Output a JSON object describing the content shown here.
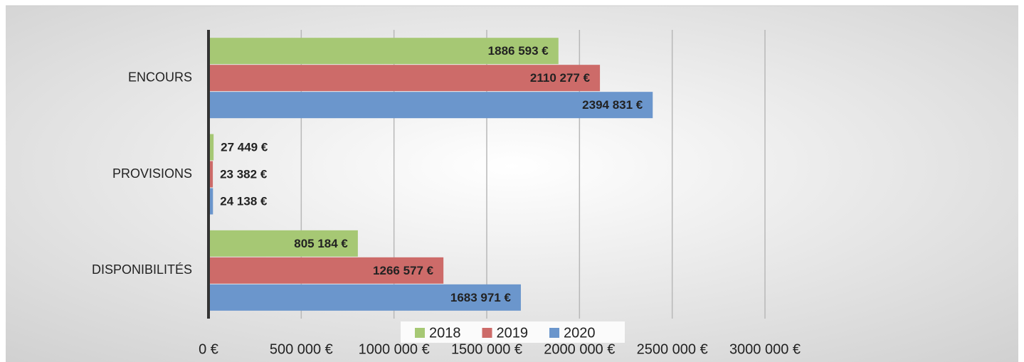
{
  "chart_data": {
    "type": "barh",
    "categories": [
      "ENCOURS",
      "PROVISIONS",
      "DISPONIBILITÉS"
    ],
    "series": [
      {
        "name": "2018",
        "color": "#a6c874",
        "values": [
          1886593,
          27449,
          805184
        ],
        "value_labels": [
          "1886 593 €",
          "27 449 €",
          "805 184 €"
        ]
      },
      {
        "name": "2019",
        "color": "#cd6b69",
        "values": [
          2110277,
          23382,
          1266577
        ],
        "value_labels": [
          "2110 277 €",
          "23 382 €",
          "1266 577 €"
        ]
      },
      {
        "name": "2020",
        "color": "#6b96cc",
        "values": [
          2394831,
          24138,
          1683971
        ],
        "value_labels": [
          "2394 831 €",
          "24 138 €",
          "1683 971 €"
        ]
      }
    ],
    "xlim": [
      0,
      3000000
    ],
    "xticks": [
      {
        "value": 0,
        "label": "0 €"
      },
      {
        "value": 500000,
        "label": "500 000 €"
      },
      {
        "value": 1000000,
        "label": "1000 000 €"
      },
      {
        "value": 1500000,
        "label": "1500 000 €"
      },
      {
        "value": 2000000,
        "label": "2000 000 €"
      },
      {
        "value": 2500000,
        "label": "2500 000 €"
      },
      {
        "value": 3000000,
        "label": "3000 000 €"
      }
    ],
    "grid": true,
    "legend": "bottom"
  }
}
